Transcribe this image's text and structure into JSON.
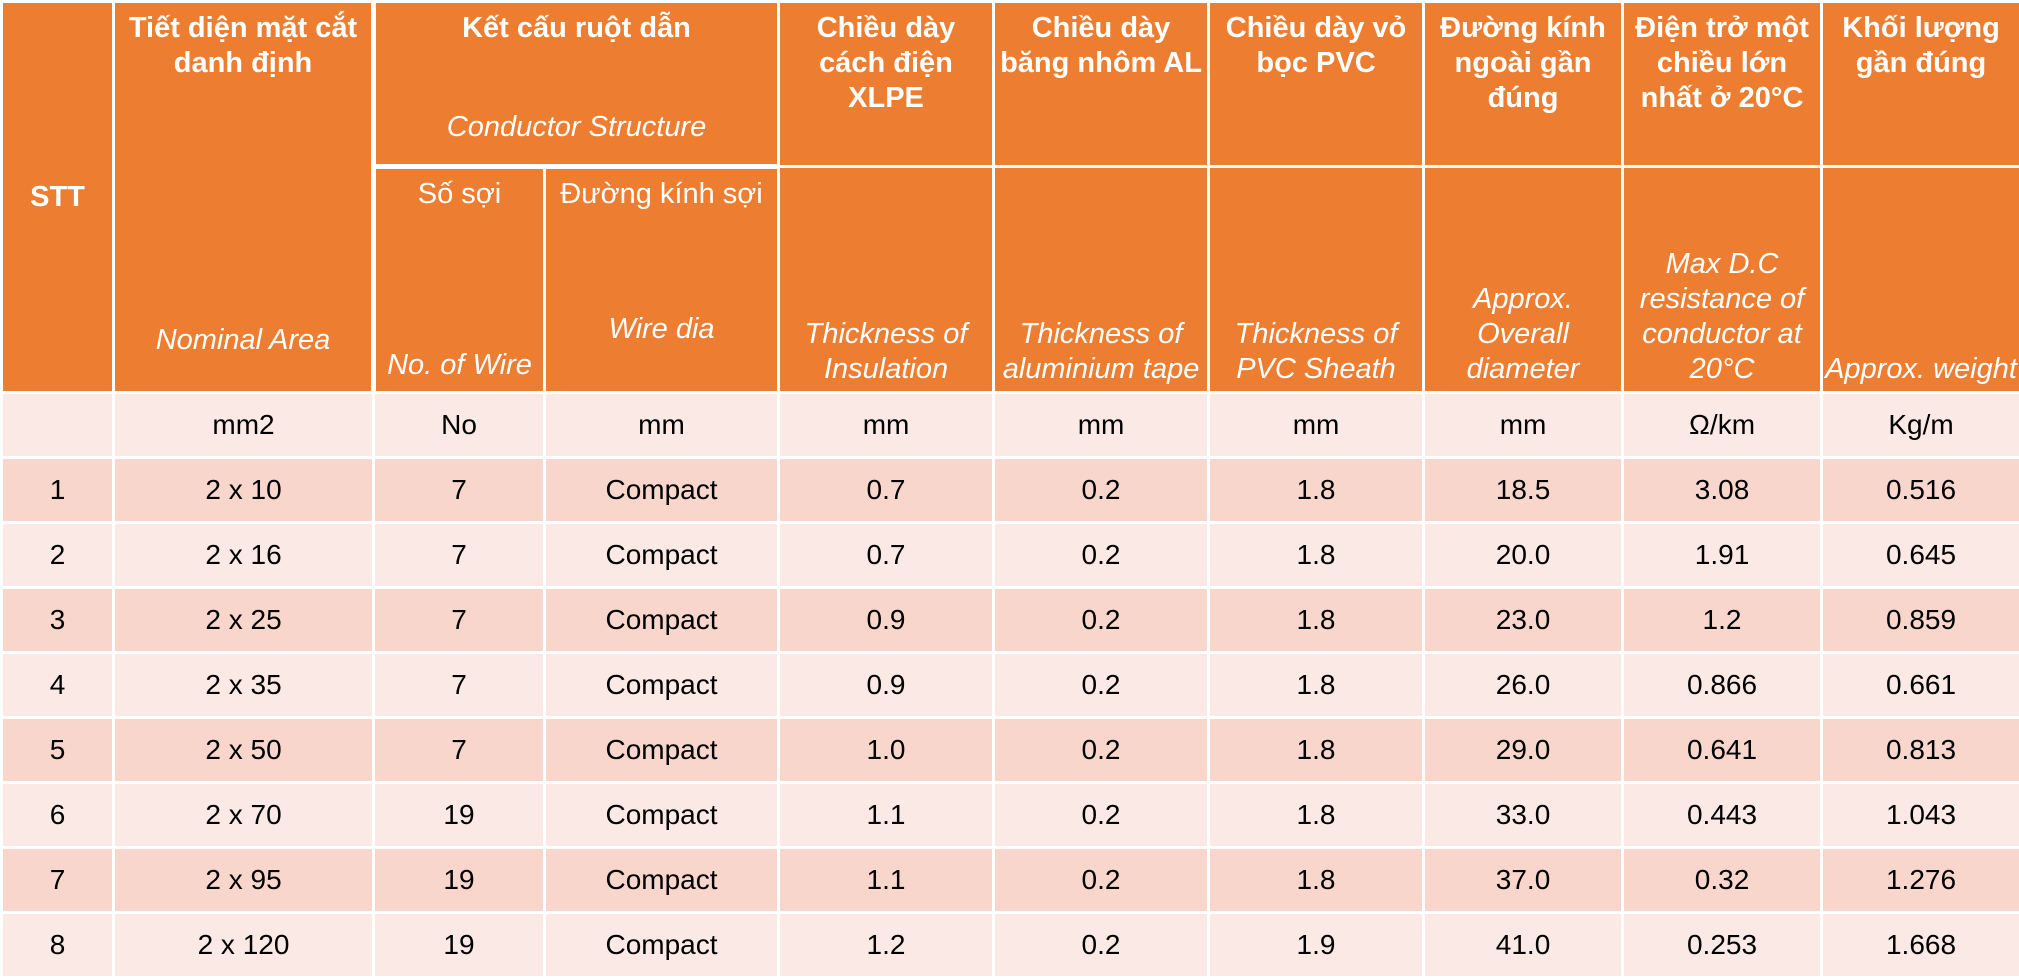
{
  "header": {
    "stt": "STT",
    "area_vi": "Tiết diện mặt cắt danh định",
    "area_en": "Nominal Area",
    "structure_vi": "Kết cấu ruột dẫn",
    "structure_en": "Conductor Structure",
    "wires_vi": "Số sợi",
    "wires_en": "No. of Wire",
    "wiredia_vi": "Đường kính sợi",
    "wiredia_en": "Wire dia",
    "insul_vi": "Chiều dày cách điện XLPE",
    "insul_en": "Thickness of Insulation",
    "tape_vi": "Chiều dày băng nhôm AL",
    "tape_en": "Thickness of aluminium tape",
    "sheath_vi": "Chiều dày vỏ bọc PVC",
    "sheath_en": "Thickness of PVC Sheath",
    "diam_vi": "Đường kính ngoài gần đúng",
    "diam_en": "Approx. Overall diameter",
    "resist_vi": "Điện trở một chiều lớn nhất ở 20°C",
    "resist_en": "Max D.C resistance of conductor at 20°C",
    "weight_vi": "Khối lượng gần đúng",
    "weight_en": "Approx. weight"
  },
  "units": [
    "",
    "mm2",
    "No",
    "mm",
    "mm",
    "mm",
    "mm",
    "mm",
    "Ω/km",
    "Kg/m"
  ],
  "rows": [
    [
      "1",
      "2 x 10",
      "7",
      "Compact",
      "0.7",
      "0.2",
      "1.8",
      "18.5",
      "3.08",
      "0.516"
    ],
    [
      "2",
      "2 x 16",
      "7",
      "Compact",
      "0.7",
      "0.2",
      "1.8",
      "20.0",
      "1.91",
      "0.645"
    ],
    [
      "3",
      "2 x 25",
      "7",
      "Compact",
      "0.9",
      "0.2",
      "1.8",
      "23.0",
      "1.2",
      "0.859"
    ],
    [
      "4",
      "2 x 35",
      "7",
      "Compact",
      "0.9",
      "0.2",
      "1.8",
      "26.0",
      "0.866",
      "0.661"
    ],
    [
      "5",
      "2 x 50",
      "7",
      "Compact",
      "1.0",
      "0.2",
      "1.8",
      "29.0",
      "0.641",
      "0.813"
    ],
    [
      "6",
      "2 x 70",
      "19",
      "Compact",
      "1.1",
      "0.2",
      "1.8",
      "33.0",
      "0.443",
      "1.043"
    ],
    [
      "7",
      "2 x 95",
      "19",
      "Compact",
      "1.1",
      "0.2",
      "1.8",
      "37.0",
      "0.32",
      "1.276"
    ],
    [
      "8",
      "2 x 120",
      "19",
      "Compact",
      "1.2",
      "0.2",
      "1.9",
      "41.0",
      "0.253",
      "1.668"
    ]
  ],
  "colors": {
    "header_bg": "#ed7d31",
    "row_dark": "#f8d6cc",
    "row_light": "#fbe9e5"
  }
}
